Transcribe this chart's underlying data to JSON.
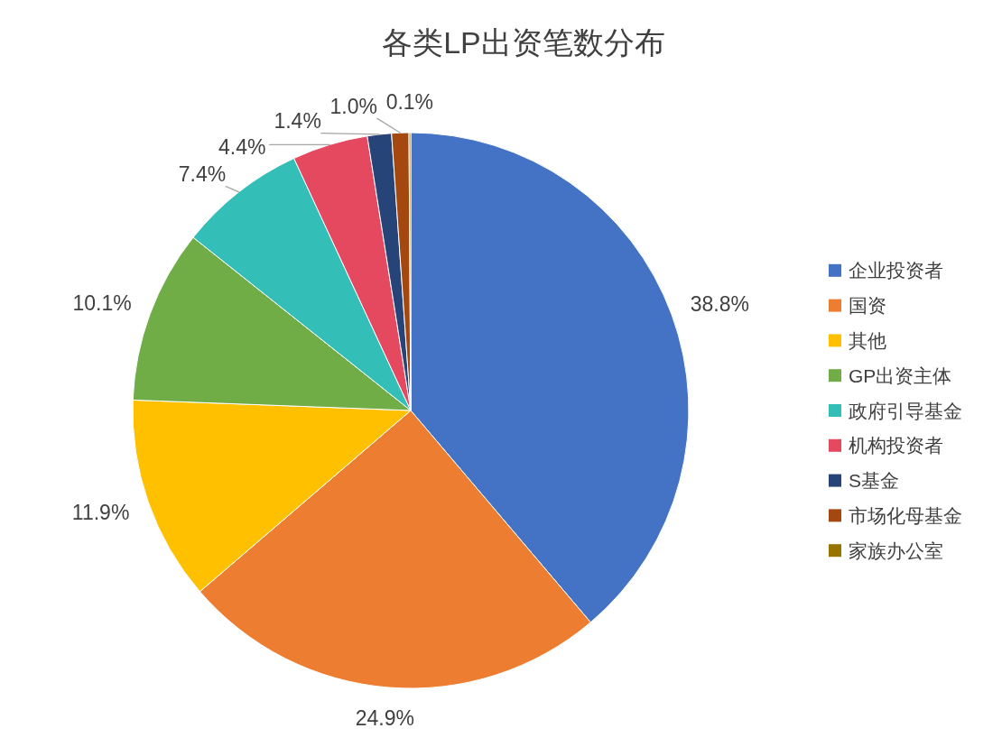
{
  "chart_data": {
    "type": "pie",
    "title": "各类LP出资笔数分布",
    "categories": [
      "企业投资者",
      "国资",
      "其他",
      "GP出资主体",
      "政府引导基金",
      "机构投资者",
      "S基金",
      "市场化母基金",
      "家族办公室"
    ],
    "values": [
      38.8,
      24.9,
      11.9,
      10.1,
      7.4,
      4.4,
      1.4,
      1.0,
      0.1
    ],
    "colors": [
      "#4472c4",
      "#ed7d31",
      "#ffc000",
      "#70ad47",
      "#33bfb8",
      "#e5495f",
      "#264478",
      "#a5480f",
      "#997300"
    ],
    "value_labels": [
      "38.8%",
      "24.9%",
      "11.9%",
      "10.1%",
      "7.4%",
      "4.4%",
      "1.4%",
      "1.0%",
      "0.1%"
    ],
    "legend": "right"
  }
}
